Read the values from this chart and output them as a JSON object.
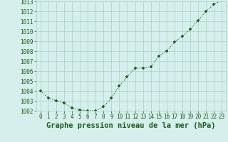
{
  "x": [
    0,
    1,
    2,
    3,
    4,
    5,
    6,
    7,
    8,
    9,
    10,
    11,
    12,
    13,
    14,
    15,
    16,
    17,
    18,
    19,
    20,
    21,
    22,
    23
  ],
  "y": [
    1004.0,
    1003.3,
    1003.0,
    1002.8,
    1002.3,
    1002.1,
    1002.0,
    1002.0,
    1002.4,
    1003.3,
    1004.5,
    1005.4,
    1006.3,
    1006.3,
    1006.4,
    1007.5,
    1008.0,
    1008.9,
    1009.5,
    1010.2,
    1011.1,
    1012.0,
    1012.7,
    1013.1
  ],
  "line_color": "#1a5c1a",
  "marker_color": "#1a5c1a",
  "bg_color": "#d6efec",
  "grid_color": "#b0d4ce",
  "xlabel": "Graphe pression niveau de la mer (hPa)",
  "xlabel_color": "#1a5c1a",
  "tick_color": "#1a5c1a",
  "ylim": [
    1002,
    1013
  ],
  "xlim": [
    -0.5,
    23.5
  ],
  "yticks": [
    1002,
    1003,
    1004,
    1005,
    1006,
    1007,
    1008,
    1009,
    1010,
    1011,
    1012,
    1013
  ],
  "xtick_labels": [
    "0",
    "1",
    "2",
    "3",
    "4",
    "5",
    "6",
    "7",
    "8",
    "9",
    "10",
    "11",
    "12",
    "13",
    "14",
    "15",
    "16",
    "17",
    "18",
    "19",
    "20",
    "21",
    "22",
    "23"
  ],
  "tick_fontsize": 5.5,
  "xlabel_fontsize": 7.5,
  "linewidth": 0.8,
  "markersize": 3.0
}
